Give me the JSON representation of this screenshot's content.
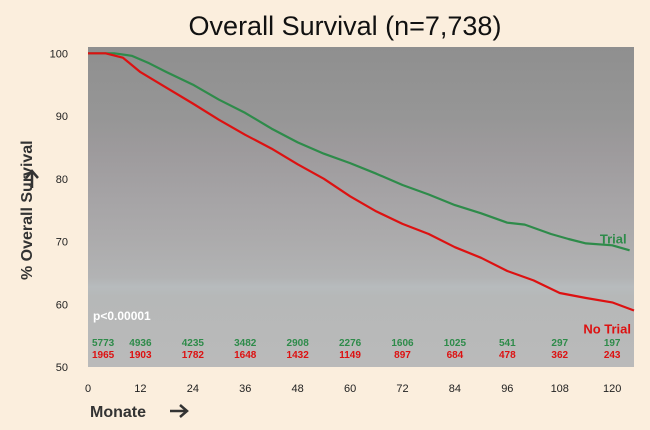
{
  "chart_data": {
    "type": "line",
    "title": "Overall Survival (n=7,738)",
    "xlabel": "Monate",
    "ylabel": "% Overall Survival",
    "xlim": [
      0,
      125
    ],
    "ylim": [
      50,
      101
    ],
    "xticks": [
      0,
      12,
      24,
      36,
      48,
      60,
      72,
      84,
      96,
      108,
      120
    ],
    "yticks": [
      50,
      60,
      70,
      80,
      90,
      100
    ],
    "grid": false,
    "annotation": "p<0.00001",
    "series": [
      {
        "name": "Trial",
        "color": "#2e8b4a",
        "x": [
          0,
          6,
          10,
          14,
          18,
          24,
          30,
          36,
          42,
          48,
          54,
          60,
          66,
          72,
          78,
          84,
          90,
          96,
          100,
          106,
          110,
          114,
          120,
          124
        ],
        "y": [
          100,
          100,
          99.6,
          98.4,
          97,
          95,
          92.6,
          90.5,
          88,
          85.8,
          84,
          82.5,
          80.8,
          79,
          77.5,
          75.8,
          74.5,
          73,
          72.7,
          71.2,
          70.4,
          69.7,
          69.4,
          68.6
        ]
      },
      {
        "name": "No Trial",
        "color": "#dd1111",
        "x": [
          0,
          4,
          8,
          12,
          18,
          24,
          30,
          36,
          42,
          48,
          54,
          60,
          66,
          72,
          78,
          84,
          90,
          96,
          102,
          108,
          114,
          120,
          125
        ],
        "y": [
          100,
          100,
          99.3,
          97,
          94.5,
          92,
          89.4,
          87,
          84.8,
          82.3,
          80,
          77.2,
          74.8,
          72.8,
          71.2,
          69.1,
          67.4,
          65.3,
          63.8,
          61.8,
          61,
          60.3,
          59
        ]
      }
    ],
    "at_risk": {
      "months": [
        0,
        12,
        24,
        36,
        48,
        60,
        72,
        84,
        96,
        108,
        120
      ],
      "trial": [
        "5773",
        "4936",
        "4235",
        "3482",
        "2908",
        "2276",
        "1606",
        "1025",
        "541",
        "297",
        "197"
      ],
      "no_trial": [
        "1965",
        "1903",
        "1782",
        "1648",
        "1432",
        "1149",
        "897",
        "684",
        "478",
        "362",
        "243"
      ]
    }
  }
}
